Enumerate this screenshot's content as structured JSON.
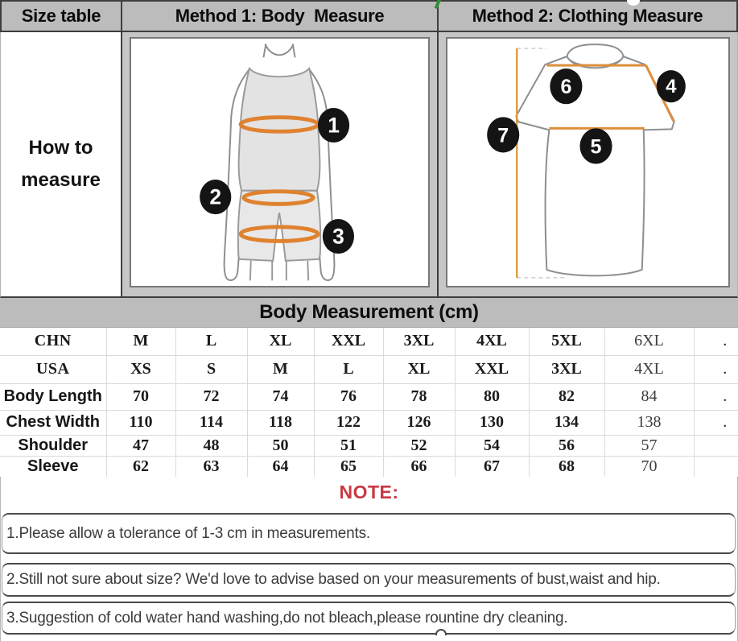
{
  "header": {
    "columns": [
      "Size table",
      "Method 1: Body  Measure",
      "Method 2: Clothing Measure"
    ]
  },
  "how_to_measure": "How to measure",
  "illustrations": {
    "body": {
      "badges": [
        "1",
        "2",
        "3"
      ]
    },
    "clothing": {
      "badges": [
        "4",
        "5",
        "6",
        "7"
      ]
    }
  },
  "section_title": "Body Measurement (cm)",
  "size_table": {
    "rows": [
      {
        "label": "CHN",
        "style": "serif",
        "values": [
          "M",
          "L",
          "XL",
          "XXL",
          "3XL",
          "4XL",
          "5XL",
          "6XL",
          "."
        ]
      },
      {
        "label": "USA",
        "style": "serif",
        "values": [
          "XS",
          "S",
          "M",
          "L",
          "XL",
          "XXL",
          "3XL",
          "4XL",
          "."
        ]
      },
      {
        "label": "Body Length",
        "style": "sans",
        "values": [
          "70",
          "72",
          "74",
          "76",
          "78",
          "80",
          "82",
          "84",
          "."
        ]
      },
      {
        "label": "Chest Width",
        "style": "sans",
        "values": [
          "110",
          "114",
          "118",
          "122",
          "126",
          "130",
          "134",
          "138",
          "."
        ]
      },
      {
        "label": "Shoulder",
        "style": "sans",
        "values": [
          "47",
          "48",
          "50",
          "51",
          "52",
          "54",
          "56",
          "57",
          ""
        ]
      },
      {
        "label": "Sleeve",
        "style": "sans",
        "values": [
          "62",
          "63",
          "64",
          "65",
          "66",
          "67",
          "68",
          "70",
          ""
        ]
      }
    ]
  },
  "notes": {
    "title": "NOTE:",
    "items": [
      "1.Please allow a tolerance of 1-3 cm in measurements.",
      "2.Still not sure about size? We'd love to advise based on your measurements of bust,waist and hip.",
      "3.Suggestion of cold water hand washing,do not bleach,please rountine dry cleaning."
    ]
  },
  "colors": {
    "header_bg": "#bcbcbc",
    "accent_orange": "#df8230",
    "note_red": "#c83a44",
    "badge_black": "#141414",
    "tick_green": "#2f9135"
  }
}
